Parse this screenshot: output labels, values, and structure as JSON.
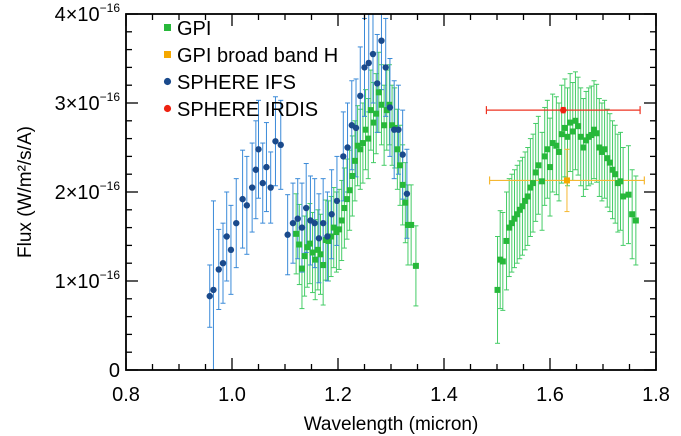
{
  "chart_data": {
    "type": "scatter",
    "xlabel": "Wavelength (micron)",
    "ylabel": "Flux (W/m²/s/A)",
    "xlim": [
      0.8,
      1.8
    ],
    "ylim": [
      0,
      4e-16
    ],
    "x_ticks": [
      {
        "value": 0.8,
        "label": "0.8"
      },
      {
        "value": 1.0,
        "label": "1.0"
      },
      {
        "value": 1.2,
        "label": "1.2"
      },
      {
        "value": 1.4,
        "label": "1.4"
      },
      {
        "value": 1.6,
        "label": "1.6"
      },
      {
        "value": 1.8,
        "label": "1.8"
      }
    ],
    "y_ticks": [
      {
        "value": 0,
        "mantissa": "0",
        "exponent": ""
      },
      {
        "value": 1e-16,
        "mantissa": "1×10",
        "exponent": "−16"
      },
      {
        "value": 2e-16,
        "mantissa": "2×10",
        "exponent": "−16"
      },
      {
        "value": 3e-16,
        "mantissa": "3×10",
        "exponent": "−16"
      },
      {
        "value": 4e-16,
        "mantissa": "4×10",
        "exponent": "−16"
      }
    ],
    "grid": false,
    "legend_position": "top-left",
    "series": [
      {
        "name": "GPI",
        "color": "#27b83a",
        "err_color": "#44cc66",
        "marker": "square",
        "points": [
          [
            1.121,
            1.53e-16,
            4.5e-17
          ],
          [
            1.127,
            1.41e-16,
            4.5e-17
          ],
          [
            1.132,
            1.14e-16,
            4.5e-17
          ],
          [
            1.137,
            1.28e-16,
            4.5e-17
          ],
          [
            1.142,
            1.38e-16,
            4.5e-17
          ],
          [
            1.147,
            1.42e-16,
            4.5e-17
          ],
          [
            1.152,
            1.32e-16,
            4.5e-17
          ],
          [
            1.157,
            1.24e-16,
            4.5e-17
          ],
          [
            1.162,
            1.35e-16,
            4.5e-17
          ],
          [
            1.167,
            1.3e-16,
            4.5e-17
          ],
          [
            1.172,
            1.18e-16,
            4.5e-17
          ],
          [
            1.177,
            1.46e-16,
            4.5e-17
          ],
          [
            1.182,
            1.45e-16,
            4.5e-17
          ],
          [
            1.187,
            1.5e-16,
            4.5e-17
          ],
          [
            1.192,
            1.6e-16,
            4.5e-17
          ],
          [
            1.197,
            1.55e-16,
            4.5e-17
          ],
          [
            1.202,
            1.58e-16,
            4.5e-17
          ],
          [
            1.207,
            1.68e-16,
            4.5e-17
          ],
          [
            1.212,
            1.82e-16,
            4.5e-17
          ],
          [
            1.217,
            1.92e-16,
            4.5e-17
          ],
          [
            1.222,
            2.02e-16,
            4.5e-17
          ],
          [
            1.227,
            2.18e-16,
            4.5e-17
          ],
          [
            1.232,
            2.35e-16,
            4.5e-17
          ],
          [
            1.237,
            2.52e-16,
            4.5e-17
          ],
          [
            1.242,
            2.48e-16,
            4.5e-17
          ],
          [
            1.247,
            2.55e-16,
            4.5e-17
          ],
          [
            1.252,
            2.7e-16,
            4.5e-17
          ],
          [
            1.257,
            2.6e-16,
            4.5e-17
          ],
          [
            1.262,
            2.92e-16,
            4.5e-17
          ],
          [
            1.267,
            2.78e-16,
            4.5e-17
          ],
          [
            1.272,
            2.88e-16,
            4.5e-17
          ],
          [
            1.277,
            3.12e-16,
            4.5e-17
          ],
          [
            1.282,
            2.98e-16,
            4.5e-17
          ],
          [
            1.287,
            2.75e-16,
            4.5e-17
          ],
          [
            1.292,
            2.92e-16,
            4.5e-17
          ],
          [
            1.297,
            2.98e-16,
            4.5e-17
          ],
          [
            1.302,
            2.75e-16,
            4.5e-17
          ],
          [
            1.307,
            2.72e-16,
            4.5e-17
          ],
          [
            1.312,
            2.48e-16,
            4.5e-17
          ],
          [
            1.317,
            2.3e-16,
            4.5e-17
          ],
          [
            1.322,
            2.08e-16,
            4.5e-17
          ],
          [
            1.327,
            1.88e-16,
            4.5e-17
          ],
          [
            1.332,
            1.63e-16,
            4.5e-17
          ],
          [
            1.338,
            1.63e-16,
            4.5e-17
          ],
          [
            1.347,
            1.17e-16,
            4.5e-17
          ],
          [
            1.501,
            9e-17,
            6e-17
          ],
          [
            1.506,
            1.24e-16,
            5.5e-17
          ],
          [
            1.511,
            1.22e-16,
            5.5e-17
          ],
          [
            1.518,
            1.45e-16,
            5.5e-17
          ],
          [
            1.523,
            1.6e-16,
            5.5e-17
          ],
          [
            1.528,
            1.65e-16,
            5.5e-17
          ],
          [
            1.533,
            1.7e-16,
            5.5e-17
          ],
          [
            1.538,
            1.75e-16,
            5.5e-17
          ],
          [
            1.543,
            1.8e-16,
            5.5e-17
          ],
          [
            1.548,
            1.84e-16,
            5.5e-17
          ],
          [
            1.553,
            1.9e-16,
            5.5e-17
          ],
          [
            1.558,
            1.95e-16,
            5.5e-17
          ],
          [
            1.563,
            2.05e-16,
            5.5e-17
          ],
          [
            1.568,
            2.1e-16,
            5.5e-17
          ],
          [
            1.573,
            2.22e-16,
            5.5e-17
          ],
          [
            1.578,
            2.3e-16,
            5.5e-17
          ],
          [
            1.585,
            2.12e-16,
            5.5e-17
          ],
          [
            1.59,
            2.4e-16,
            5.5e-17
          ],
          [
            1.595,
            2.48e-16,
            5.5e-17
          ],
          [
            1.6,
            2.28e-16,
            5.5e-17
          ],
          [
            1.605,
            2.55e-16,
            5.5e-17
          ],
          [
            1.612,
            2.52e-16,
            5.5e-17
          ],
          [
            1.617,
            2.45e-16,
            5.5e-17
          ],
          [
            1.622,
            2.65e-16,
            5.5e-17
          ],
          [
            1.628,
            2.72e-16,
            5.5e-17
          ],
          [
            1.633,
            2.62e-16,
            5.5e-17
          ],
          [
            1.638,
            2.78e-16,
            5.5e-17
          ],
          [
            1.643,
            2.68e-16,
            5.5e-17
          ],
          [
            1.648,
            2.8e-16,
            5.5e-17
          ],
          [
            1.653,
            2.74e-16,
            5.5e-17
          ],
          [
            1.658,
            2.62e-16,
            5.5e-17
          ],
          [
            1.663,
            2.5e-16,
            5.5e-17
          ],
          [
            1.668,
            2.58e-16,
            5.5e-17
          ],
          [
            1.673,
            2.62e-16,
            5.5e-17
          ],
          [
            1.678,
            2.64e-16,
            5.5e-17
          ],
          [
            1.683,
            2.7e-16,
            5.5e-17
          ],
          [
            1.688,
            2.66e-16,
            5.5e-17
          ],
          [
            1.693,
            2.5e-16,
            5.5e-17
          ],
          [
            1.698,
            2.45e-16,
            5.5e-17
          ],
          [
            1.703,
            2.48e-16,
            5.5e-17
          ],
          [
            1.708,
            2.38e-16,
            5.5e-17
          ],
          [
            1.713,
            2.33e-16,
            5.5e-17
          ],
          [
            1.718,
            2.25e-16,
            5.5e-17
          ],
          [
            1.723,
            2.2e-16,
            5.5e-17
          ],
          [
            1.728,
            2.1e-16,
            5.5e-17
          ],
          [
            1.733,
            2.12e-16,
            5.5e-17
          ],
          [
            1.738,
            1.95e-16,
            5.5e-17
          ],
          [
            1.748,
            1.97e-16,
            5.5e-17
          ],
          [
            1.755,
            1.75e-16,
            5e-17
          ],
          [
            1.762,
            1.68e-16,
            5e-17
          ]
        ]
      },
      {
        "name": "GPI broad band H",
        "color": "#f5a800",
        "err_color": "#f5b833",
        "marker": "square",
        "points": [
          [
            1.632,
            2.13e-16,
            3.5e-17,
            0.146
          ]
        ]
      },
      {
        "name": "SPHERE IFS",
        "color": "#1a4a8c",
        "err_color": "#3a8ad8",
        "marker": "circle",
        "points": [
          [
            0.958,
            8.3e-17,
            3.5e-17
          ],
          [
            0.965,
            9e-17,
            1e-16
          ],
          [
            0.975,
            1.13e-16,
            4.5e-17
          ],
          [
            0.983,
            1.2e-16,
            4.5e-17
          ],
          [
            0.99,
            1.5e-16,
            5e-17
          ],
          [
            0.998,
            1.35e-16,
            5e-17
          ],
          [
            1.008,
            1.65e-16,
            5e-17
          ],
          [
            1.02,
            1.92e-16,
            5.5e-17
          ],
          [
            1.028,
            1.85e-16,
            5.5e-17
          ],
          [
            1.038,
            2.05e-16,
            5e-17
          ],
          [
            1.045,
            2.25e-16,
            5.5e-17
          ],
          [
            1.05,
            2.48e-16,
            5.5e-17
          ],
          [
            1.058,
            2.1e-16,
            4.5e-17
          ],
          [
            1.065,
            2.28e-16,
            5e-17
          ],
          [
            1.073,
            2.05e-16,
            4e-17
          ],
          [
            1.082,
            2.57e-16,
            5e-17
          ],
          [
            1.092,
            2.53e-16,
            5e-17
          ],
          [
            1.105,
            1.52e-16,
            4.5e-17
          ],
          [
            1.115,
            1.65e-16,
            4.5e-17
          ],
          [
            1.124,
            1.7e-16,
            4.5e-17
          ],
          [
            1.132,
            1.6e-16,
            5e-17
          ],
          [
            1.14,
            1.82e-16,
            5e-17
          ],
          [
            1.148,
            1.68e-16,
            5e-17
          ],
          [
            1.156,
            1.65e-16,
            5e-17
          ],
          [
            1.164,
            1.48e-16,
            5e-17
          ],
          [
            1.172,
            1.65e-16,
            5e-17
          ],
          [
            1.18,
            1.5e-16,
            5e-17
          ],
          [
            1.188,
            1.75e-16,
            5e-17
          ],
          [
            1.198,
            1.9e-16,
            5e-17
          ],
          [
            1.21,
            2.4e-16,
            5e-17
          ],
          [
            1.218,
            2.5e-16,
            5e-17
          ],
          [
            1.226,
            2.75e-16,
            5e-17
          ],
          [
            1.234,
            2.72e-16,
            5.5e-17
          ],
          [
            1.242,
            3.08e-16,
            5.5e-17
          ],
          [
            1.25,
            3.4e-16,
            5.5e-17
          ],
          [
            1.258,
            3.45e-16,
            5.5e-17
          ],
          [
            1.266,
            3.55e-16,
            5.5e-17
          ],
          [
            1.274,
            3.22e-16,
            5.5e-17
          ],
          [
            1.282,
            3.7e-16,
            5.5e-17
          ],
          [
            1.29,
            3.4e-16,
            5.5e-17
          ],
          [
            1.298,
            2.95e-16,
            5.5e-17
          ],
          [
            1.306,
            2.7e-16,
            5.5e-17
          ],
          [
            1.314,
            2.7e-16,
            5e-17
          ],
          [
            1.322,
            2.42e-16,
            5e-17
          ],
          [
            1.33,
            1.98e-16,
            5e-17
          ]
        ]
      },
      {
        "name": "SPHERE IRDIS",
        "color": "#ee2211",
        "err_color": "#ee3322",
        "marker": "circle",
        "points": [
          [
            1.625,
            2.92e-16,
            3e-18,
            0.145
          ]
        ]
      }
    ]
  }
}
